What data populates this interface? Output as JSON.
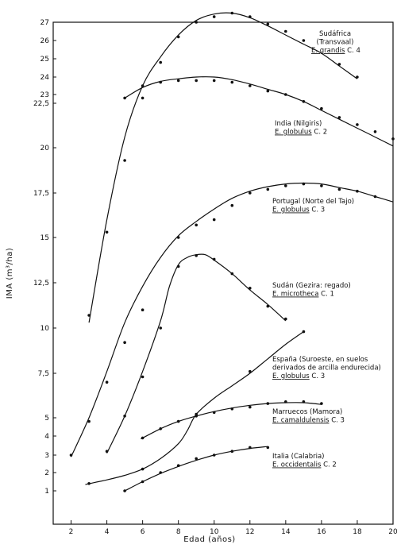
{
  "chart_data": {
    "type": "scatter",
    "xlabel": "Edad (años)",
    "ylabel": "IMA (m³/ha)",
    "xlim": [
      1,
      20
    ],
    "ylim": [
      0,
      27
    ],
    "x_ticks": [
      "2",
      "4",
      "6",
      "8",
      "10",
      "12",
      "14",
      "16",
      "18",
      "20"
    ],
    "y_ticks": [
      {
        "value": 1,
        "label": "1"
      },
      {
        "value": 2,
        "label": "2"
      },
      {
        "value": 3,
        "label": "3"
      },
      {
        "value": 4,
        "label": "4"
      },
      {
        "value": 5,
        "label": "5"
      },
      {
        "value": 7.5,
        "label": "7,5"
      },
      {
        "value": 10,
        "label": "10"
      },
      {
        "value": 12.5,
        "label": "12,5"
      },
      {
        "value": 15,
        "label": "15"
      },
      {
        "value": 17.5,
        "label": "17,5"
      },
      {
        "value": 20,
        "label": "20"
      },
      {
        "value": 22.5,
        "label": "22,5"
      },
      {
        "value": 23,
        "label": "23"
      },
      {
        "value": 24,
        "label": "24"
      },
      {
        "value": 25,
        "label": "25"
      },
      {
        "value": 26,
        "label": "26"
      },
      {
        "value": 27,
        "label": "27"
      }
    ],
    "y_scale": "nonlinear",
    "grid": false,
    "series": [
      {
        "name": "Sudáfrica (Transvaal) E. grandis C. 4",
        "lines": [
          "Sudáfrica",
          "(Transvaal)"
        ],
        "species": "E. grandis",
        "class": "C. 4",
        "points": [
          [
            3,
            10.7
          ],
          [
            4,
            15.3
          ],
          [
            5,
            19.3
          ],
          [
            6,
            22.8
          ],
          [
            7,
            24.8
          ],
          [
            8,
            26.2
          ],
          [
            9,
            27
          ],
          [
            10,
            27.3
          ],
          [
            11,
            27.5
          ],
          [
            12,
            27.3
          ],
          [
            13,
            26.9
          ],
          [
            14,
            26.5
          ],
          [
            15,
            26
          ],
          [
            17,
            24.7
          ],
          [
            18,
            24
          ]
        ],
        "curve": [
          [
            3,
            10.3
          ],
          [
            4,
            16
          ],
          [
            5,
            20.6
          ],
          [
            6,
            23.5
          ],
          [
            7,
            25.1
          ],
          [
            8,
            26.3
          ],
          [
            9,
            27.1
          ],
          [
            10,
            27.45
          ],
          [
            11,
            27.5
          ],
          [
            12,
            27.25
          ],
          [
            13,
            26.8
          ],
          [
            14,
            26.3
          ],
          [
            15,
            25.8
          ],
          [
            16,
            25.3
          ],
          [
            17,
            24.6
          ],
          [
            18,
            23.9
          ]
        ]
      },
      {
        "name": "India (Nilgiris) E. globulus C. 2",
        "lines": [
          "India (Nilgiris)"
        ],
        "species": "E. globulus",
        "class": "C. 2",
        "points": [
          [
            5,
            22.8
          ],
          [
            6,
            23.5
          ],
          [
            7,
            23.7
          ],
          [
            8,
            23.8
          ],
          [
            9,
            23.8
          ],
          [
            10,
            23.8
          ],
          [
            11,
            23.7
          ],
          [
            12,
            23.5
          ],
          [
            13,
            23.2
          ],
          [
            14,
            23
          ],
          [
            15,
            22.6
          ],
          [
            16,
            22.2
          ],
          [
            17,
            21.7
          ],
          [
            18,
            21.3
          ],
          [
            19,
            20.9
          ],
          [
            20,
            20.5
          ]
        ],
        "curve": [
          [
            5,
            22.8
          ],
          [
            6,
            23.4
          ],
          [
            7,
            23.75
          ],
          [
            8,
            23.9
          ],
          [
            9,
            24
          ],
          [
            10,
            24
          ],
          [
            11,
            23.85
          ],
          [
            12,
            23.6
          ],
          [
            13,
            23.3
          ],
          [
            14,
            23
          ],
          [
            15,
            22.6
          ],
          [
            16,
            22.1
          ],
          [
            17,
            21.6
          ],
          [
            18,
            21.1
          ],
          [
            19,
            20.6
          ],
          [
            20,
            20.1
          ]
        ]
      },
      {
        "name": "Portugal (Norte del Tajo) E. globulus C. 3",
        "lines": [
          "Portugal (Norte del Tajo)"
        ],
        "species": "E. globulus",
        "class": "C. 3",
        "points": [
          [
            2,
            3
          ],
          [
            3,
            4.8
          ],
          [
            4,
            7
          ],
          [
            5,
            9.2
          ],
          [
            6,
            11
          ],
          [
            8,
            15
          ],
          [
            9,
            15.7
          ],
          [
            10,
            16
          ],
          [
            11,
            16.8
          ],
          [
            12,
            17.5
          ],
          [
            13,
            17.7
          ],
          [
            14,
            17.9
          ],
          [
            15,
            18
          ],
          [
            16,
            17.9
          ],
          [
            17,
            17.7
          ],
          [
            18,
            17.6
          ],
          [
            19,
            17.3
          ]
        ],
        "curve": [
          [
            2,
            2.9
          ],
          [
            3,
            5
          ],
          [
            4,
            7.6
          ],
          [
            5,
            10.3
          ],
          [
            6,
            12.3
          ],
          [
            7,
            13.9
          ],
          [
            8,
            15.1
          ],
          [
            9,
            15.9
          ],
          [
            10,
            16.6
          ],
          [
            11,
            17.2
          ],
          [
            12,
            17.6
          ],
          [
            13,
            17.85
          ],
          [
            14,
            18
          ],
          [
            15,
            18.05
          ],
          [
            16,
            18
          ],
          [
            17,
            17.8
          ],
          [
            18,
            17.6
          ],
          [
            19,
            17.3
          ],
          [
            20,
            17
          ]
        ]
      },
      {
        "name": "Sudán (Gezira: regado) E. microtheca C. 1",
        "lines": [
          "Sudán (Gezira: regado)"
        ],
        "species": "E. microtheca",
        "class": "C. 1",
        "points": [
          [
            4,
            3.2
          ],
          [
            5,
            5.1
          ],
          [
            6,
            7.3
          ],
          [
            7,
            10
          ],
          [
            8,
            13.4
          ],
          [
            9,
            14
          ],
          [
            10,
            13.8
          ],
          [
            11,
            13
          ],
          [
            12,
            12.2
          ],
          [
            13,
            11.2
          ],
          [
            14,
            10.5
          ]
        ],
        "curve": [
          [
            4,
            3.1
          ],
          [
            5,
            5.1
          ],
          [
            6,
            7.6
          ],
          [
            7,
            10.4
          ],
          [
            7.5,
            12.3
          ],
          [
            8,
            13.5
          ],
          [
            8.5,
            13.9
          ],
          [
            9,
            14.05
          ],
          [
            9.5,
            14.05
          ],
          [
            10,
            13.75
          ],
          [
            11,
            13
          ],
          [
            12,
            12.1
          ],
          [
            13,
            11.3
          ],
          [
            14,
            10.4
          ]
        ]
      },
      {
        "name": "España (Suroeste, en suelos derivados de arcilla endurecida) E. globulus C. 3",
        "lines": [
          "España (Suroeste, en suelos",
          "derivados de arcilla endurecida)"
        ],
        "species": "E. globulus",
        "class": "C. 3",
        "points": [
          [
            3,
            1.4
          ],
          [
            6,
            2.2
          ],
          [
            9,
            5.2
          ],
          [
            12,
            7.6
          ],
          [
            15,
            9.8
          ]
        ],
        "curve": [
          [
            2.8,
            1.35
          ],
          [
            4,
            1.6
          ],
          [
            5,
            1.85
          ],
          [
            6,
            2.2
          ],
          [
            7,
            2.8
          ],
          [
            8,
            3.6
          ],
          [
            8.5,
            4.3
          ],
          [
            9,
            5.2
          ],
          [
            10,
            6.1
          ],
          [
            11,
            6.8
          ],
          [
            12,
            7.5
          ],
          [
            13,
            8.3
          ],
          [
            14,
            9.1
          ],
          [
            15,
            9.8
          ]
        ]
      },
      {
        "name": "Marruecos (Mamora) E. camaldulensis C. 3",
        "lines": [
          "Marruecos (Mamora)"
        ],
        "species": "E. camaldulensis",
        "class": "C. 3",
        "points": [
          [
            6,
            3.9
          ],
          [
            7,
            4.4
          ],
          [
            8,
            4.8
          ],
          [
            9,
            5.1
          ],
          [
            10,
            5.3
          ],
          [
            11,
            5.5
          ],
          [
            12,
            5.6
          ],
          [
            13,
            5.8
          ],
          [
            14,
            5.9
          ],
          [
            15,
            5.9
          ],
          [
            16,
            5.8
          ]
        ],
        "curve": [
          [
            5.9,
            3.85
          ],
          [
            7,
            4.4
          ],
          [
            8,
            4.8
          ],
          [
            9,
            5.1
          ],
          [
            10,
            5.35
          ],
          [
            11,
            5.55
          ],
          [
            12,
            5.7
          ],
          [
            13,
            5.8
          ],
          [
            14,
            5.85
          ],
          [
            15,
            5.85
          ],
          [
            16,
            5.75
          ]
        ]
      },
      {
        "name": "Italia (Calabria) E. occidentalis C. 2",
        "lines": [
          "Italia (Calabria)"
        ],
        "species": "E. occidentalis",
        "class": "C. 2",
        "points": [
          [
            5,
            1
          ],
          [
            6,
            1.5
          ],
          [
            7,
            2
          ],
          [
            8,
            2.4
          ],
          [
            9,
            2.8
          ],
          [
            10,
            3
          ],
          [
            11,
            3.2
          ],
          [
            12,
            3.4
          ],
          [
            13,
            3.4
          ]
        ],
        "curve": [
          [
            5,
            1
          ],
          [
            6,
            1.5
          ],
          [
            7,
            1.95
          ],
          [
            8,
            2.35
          ],
          [
            9,
            2.7
          ],
          [
            10,
            3
          ],
          [
            11,
            3.2
          ],
          [
            12,
            3.35
          ],
          [
            13,
            3.45
          ]
        ]
      }
    ]
  }
}
